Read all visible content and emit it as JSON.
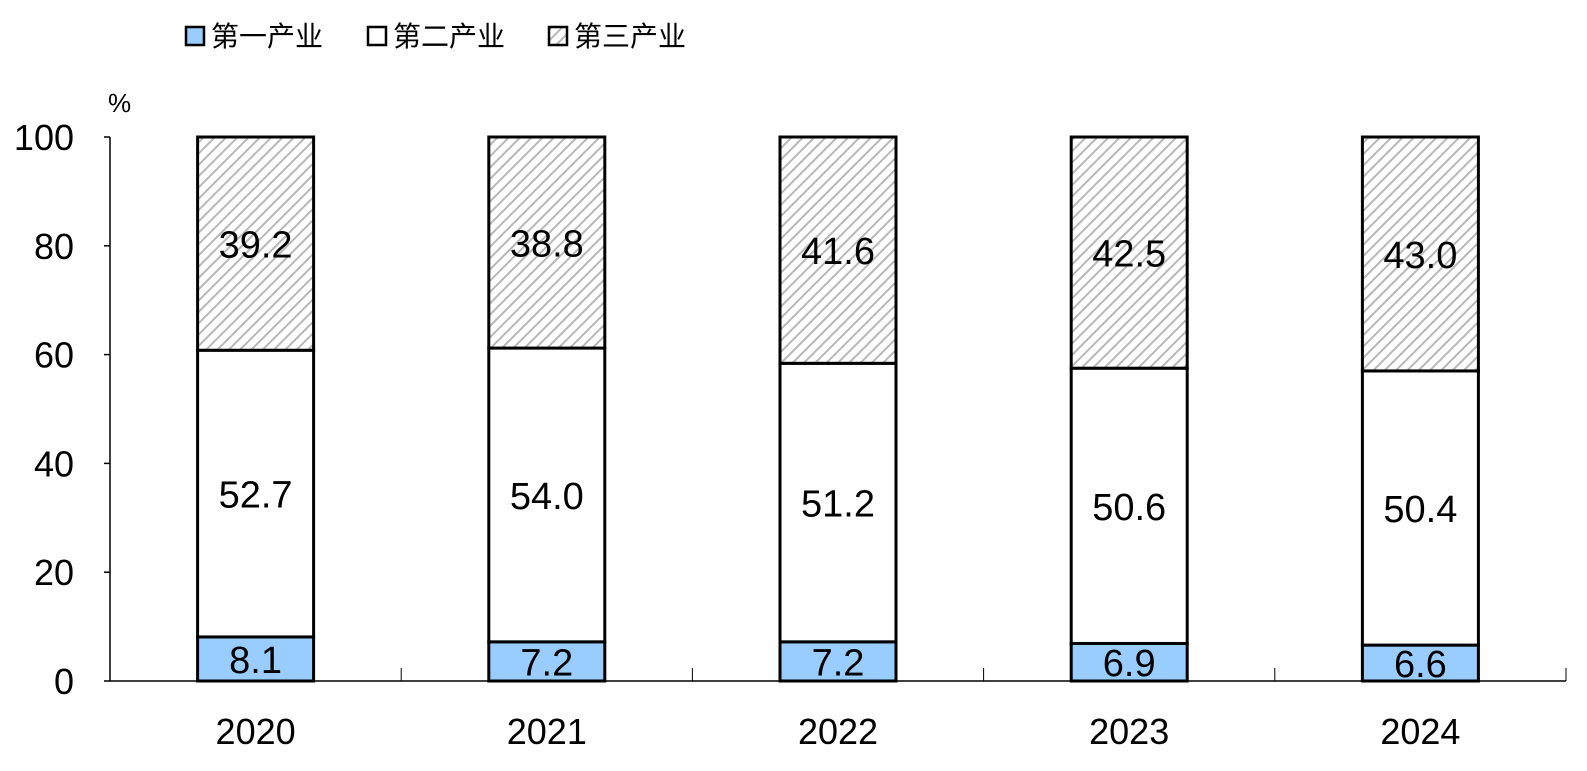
{
  "chart_data": {
    "type": "bar",
    "stacked": true,
    "categories": [
      "2020",
      "2021",
      "2022",
      "2023",
      "2024"
    ],
    "series": [
      {
        "name": "第一产业",
        "values": [
          8.1,
          7.2,
          7.2,
          6.9,
          6.6
        ],
        "color": "#99ccff",
        "pattern": "solid"
      },
      {
        "name": "第二产业",
        "values": [
          52.7,
          54.0,
          51.2,
          50.6,
          50.4
        ],
        "color": "#ffffff",
        "pattern": "solid"
      },
      {
        "name": "第三产业",
        "values": [
          39.2,
          38.8,
          41.6,
          42.5,
          43.0
        ],
        "color": "#ffffff",
        "pattern": "diagonal-hatch",
        "hatch_color": "#c0c0c0"
      }
    ],
    "ylabel": "%",
    "ylim": [
      0,
      100
    ],
    "yticks": [
      "0",
      "20",
      "40",
      "60",
      "80",
      "100"
    ],
    "legend_position": "top-left",
    "grid": false
  }
}
